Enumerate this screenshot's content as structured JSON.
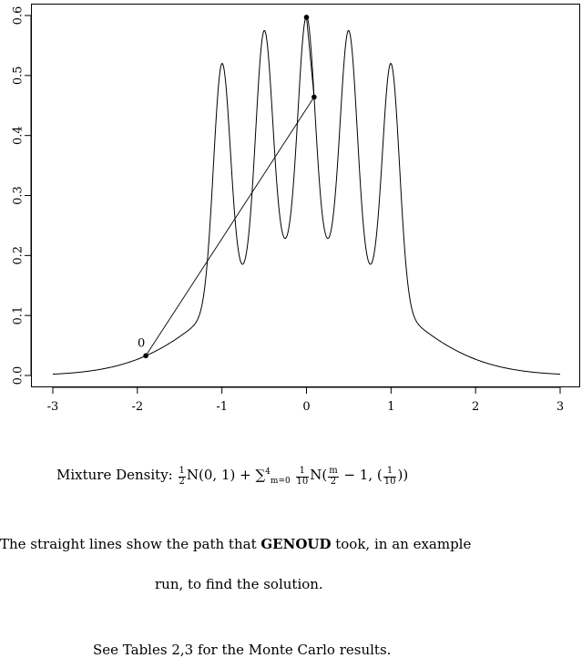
{
  "chart_data": {
    "type": "line",
    "title": "",
    "xlabel": "",
    "ylabel": "",
    "xlim": [
      -3.0,
      3.0
    ],
    "ylim": [
      0.0,
      0.6
    ],
    "x_ticks": [
      -3,
      -2,
      -1,
      0,
      1,
      2,
      3
    ],
    "x_tick_labels": [
      "-3",
      "-2",
      "-1",
      "0",
      "1",
      "2",
      "3"
    ],
    "y_ticks": [
      0.0,
      0.1,
      0.2,
      0.3,
      0.4,
      0.5,
      0.6
    ],
    "y_tick_labels": [
      "0.0",
      "0.1",
      "0.2",
      "0.3",
      "0.4",
      "0.5",
      "0.6"
    ],
    "grid": false,
    "legend": "none",
    "density": {
      "base_weight": 0.5,
      "base_mean": 0,
      "base_var": 1,
      "component_weight": 0.1,
      "component_means": [
        -1,
        -0.5,
        0,
        0.5,
        1
      ],
      "component_var": 0.01
    },
    "path": {
      "x": [
        -1.9,
        0.09,
        0.0
      ],
      "y": [
        0.033,
        0.464,
        0.597
      ],
      "start_label": "0"
    }
  },
  "caption": {
    "prefix": "Mixture Density: ",
    "formula": {
      "f1_num": "1",
      "f1_den": "2",
      "base": "N(0, 1) + ",
      "sum": "∑",
      "sum_sub": "m=0",
      "sum_sup": "4",
      "f2_num": "1",
      "f2_den": "10",
      "comp_open": "N(",
      "f3_num": "m",
      "f3_den": "2",
      "comp_mid": " − 1, (",
      "f4_num": "1",
      "f4_den": "10",
      "comp_close": "))"
    },
    "line1_pre": "The straight lines show the path that ",
    "line1_bold": "GENOUD",
    "line1_post": " took, in an example",
    "line2": "run, to find the solution.",
    "note": "See Tables 2,3 for the Monte Carlo results."
  }
}
